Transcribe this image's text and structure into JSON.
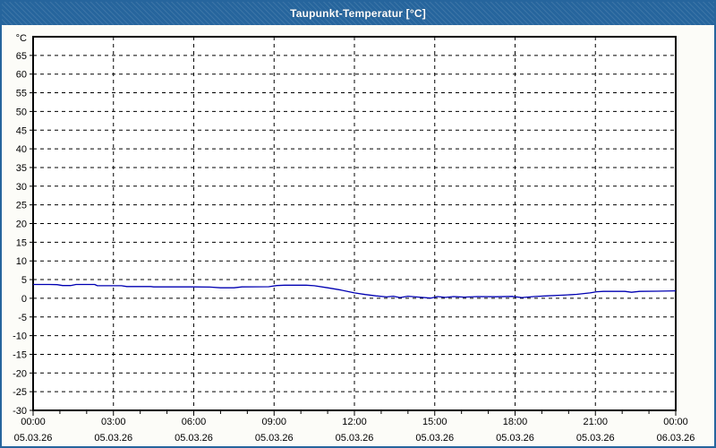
{
  "window": {
    "title": "Taupunkt-Temperatur [°C]",
    "titlebar_color": "#26659D",
    "border_color": "#26659D",
    "content_background": "#FCFCF8"
  },
  "chart_data": {
    "type": "line",
    "title": "Taupunkt-Temperatur [°C]",
    "plot_background": "#FFFFFF",
    "grid": {
      "style": "dashed",
      "color": "#000000"
    },
    "y_axis": {
      "unit_label": "°C",
      "min": -30,
      "max": 70,
      "tick_step": 5,
      "tick_values": [
        65,
        60,
        55,
        50,
        45,
        40,
        35,
        30,
        25,
        20,
        15,
        10,
        5,
        0,
        -5,
        -10,
        -15,
        -20,
        -25,
        -30
      ]
    },
    "x_axis": {
      "hours_span": 24,
      "major_every_hours": 3,
      "minor_every_hours": 1,
      "ticks": [
        {
          "time": "00:00",
          "date": "05.03.26"
        },
        {
          "time": "03:00",
          "date": "05.03.26"
        },
        {
          "time": "06:00",
          "date": "05.03.26"
        },
        {
          "time": "09:00",
          "date": "05.03.26"
        },
        {
          "time": "12:00",
          "date": "05.03.26"
        },
        {
          "time": "15:00",
          "date": "05.03.26"
        },
        {
          "time": "18:00",
          "date": "05.03.26"
        },
        {
          "time": "21:00",
          "date": "05.03.26"
        },
        {
          "time": "00:00",
          "date": "06.03.26"
        }
      ]
    },
    "series": [
      {
        "name": "Taupunkt",
        "color": "#0000B2",
        "points": [
          [
            0.0,
            3.7
          ],
          [
            0.6,
            3.7
          ],
          [
            0.9,
            3.65
          ],
          [
            1.1,
            3.4
          ],
          [
            1.4,
            3.4
          ],
          [
            1.6,
            3.7
          ],
          [
            2.3,
            3.7
          ],
          [
            2.4,
            3.35
          ],
          [
            3.3,
            3.35
          ],
          [
            3.5,
            3.15
          ],
          [
            4.4,
            3.15
          ],
          [
            4.5,
            3.05
          ],
          [
            6.0,
            3.05
          ],
          [
            6.6,
            3.0
          ],
          [
            7.0,
            2.8
          ],
          [
            7.5,
            2.8
          ],
          [
            7.8,
            3.05
          ],
          [
            8.8,
            3.1
          ],
          [
            9.1,
            3.4
          ],
          [
            9.4,
            3.5
          ],
          [
            10.2,
            3.5
          ],
          [
            10.5,
            3.35
          ],
          [
            11.0,
            2.8
          ],
          [
            11.5,
            2.2
          ],
          [
            12.0,
            1.45
          ],
          [
            12.4,
            1.0
          ],
          [
            12.8,
            0.65
          ],
          [
            13.2,
            0.35
          ],
          [
            13.45,
            0.55
          ],
          [
            13.7,
            0.2
          ],
          [
            14.0,
            0.55
          ],
          [
            14.4,
            0.3
          ],
          [
            14.85,
            0.05
          ],
          [
            15.1,
            0.45
          ],
          [
            15.4,
            0.25
          ],
          [
            15.7,
            0.45
          ],
          [
            16.1,
            0.3
          ],
          [
            16.6,
            0.45
          ],
          [
            17.3,
            0.4
          ],
          [
            17.9,
            0.5
          ],
          [
            18.25,
            0.2
          ],
          [
            18.7,
            0.45
          ],
          [
            19.2,
            0.65
          ],
          [
            19.8,
            0.85
          ],
          [
            20.3,
            1.05
          ],
          [
            20.8,
            1.45
          ],
          [
            21.05,
            1.75
          ],
          [
            21.3,
            1.85
          ],
          [
            22.1,
            1.85
          ],
          [
            22.35,
            1.6
          ],
          [
            22.65,
            1.85
          ],
          [
            23.3,
            1.9
          ],
          [
            24.0,
            2.0
          ]
        ]
      }
    ]
  }
}
